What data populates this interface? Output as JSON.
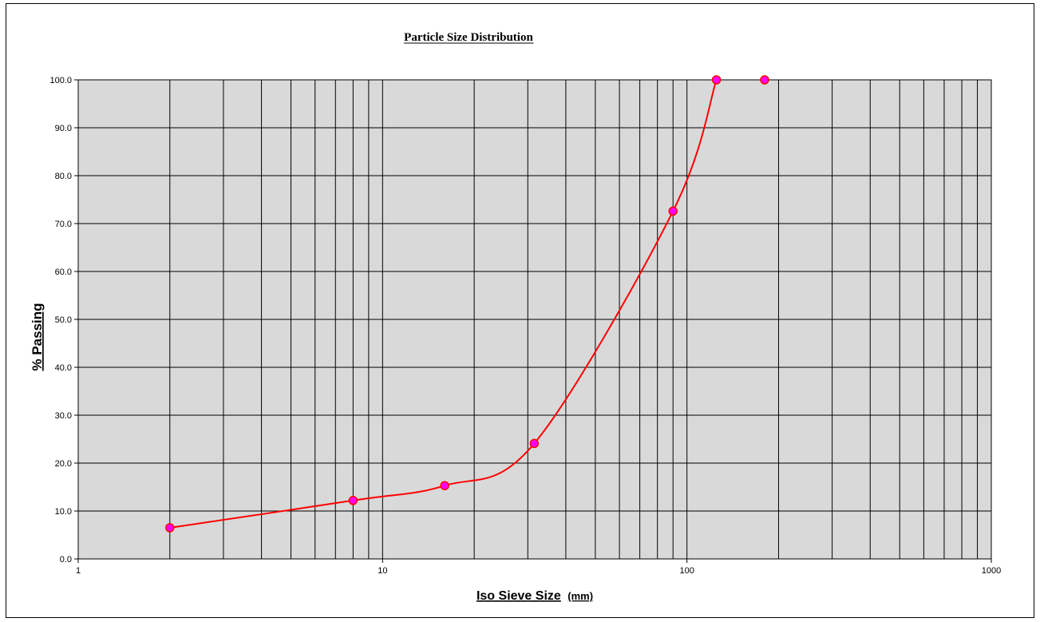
{
  "chart_data": {
    "type": "line",
    "title": "Particle Size Distribution",
    "xlabel": "Iso Sieve Size",
    "xlabel_unit": "(mm)",
    "ylabel": "% Passing",
    "x_scale": "log",
    "xlim": [
      1,
      1000
    ],
    "ylim": [
      0,
      100
    ],
    "x_tick_labels": [
      "1",
      "10",
      "100",
      "1000"
    ],
    "y_tick_labels": [
      "0.0",
      "10.0",
      "20.0",
      "30.0",
      "40.0",
      "50.0",
      "60.0",
      "70.0",
      "80.0",
      "90.0",
      "100.0"
    ],
    "grid": true,
    "plot_background": "#d9d9d9",
    "series": [
      {
        "color": "#ff0000",
        "marker_color": "#ff00ff",
        "smooth": true,
        "points": [
          {
            "x": 2,
            "y": 6.5
          },
          {
            "x": 8,
            "y": 12.2
          },
          {
            "x": 16,
            "y": 15.3
          },
          {
            "x": 31.5,
            "y": 24.1
          },
          {
            "x": 90,
            "y": 72.6
          },
          {
            "x": 125,
            "y": 100
          },
          {
            "x": 180,
            "y": 100
          }
        ]
      }
    ]
  }
}
